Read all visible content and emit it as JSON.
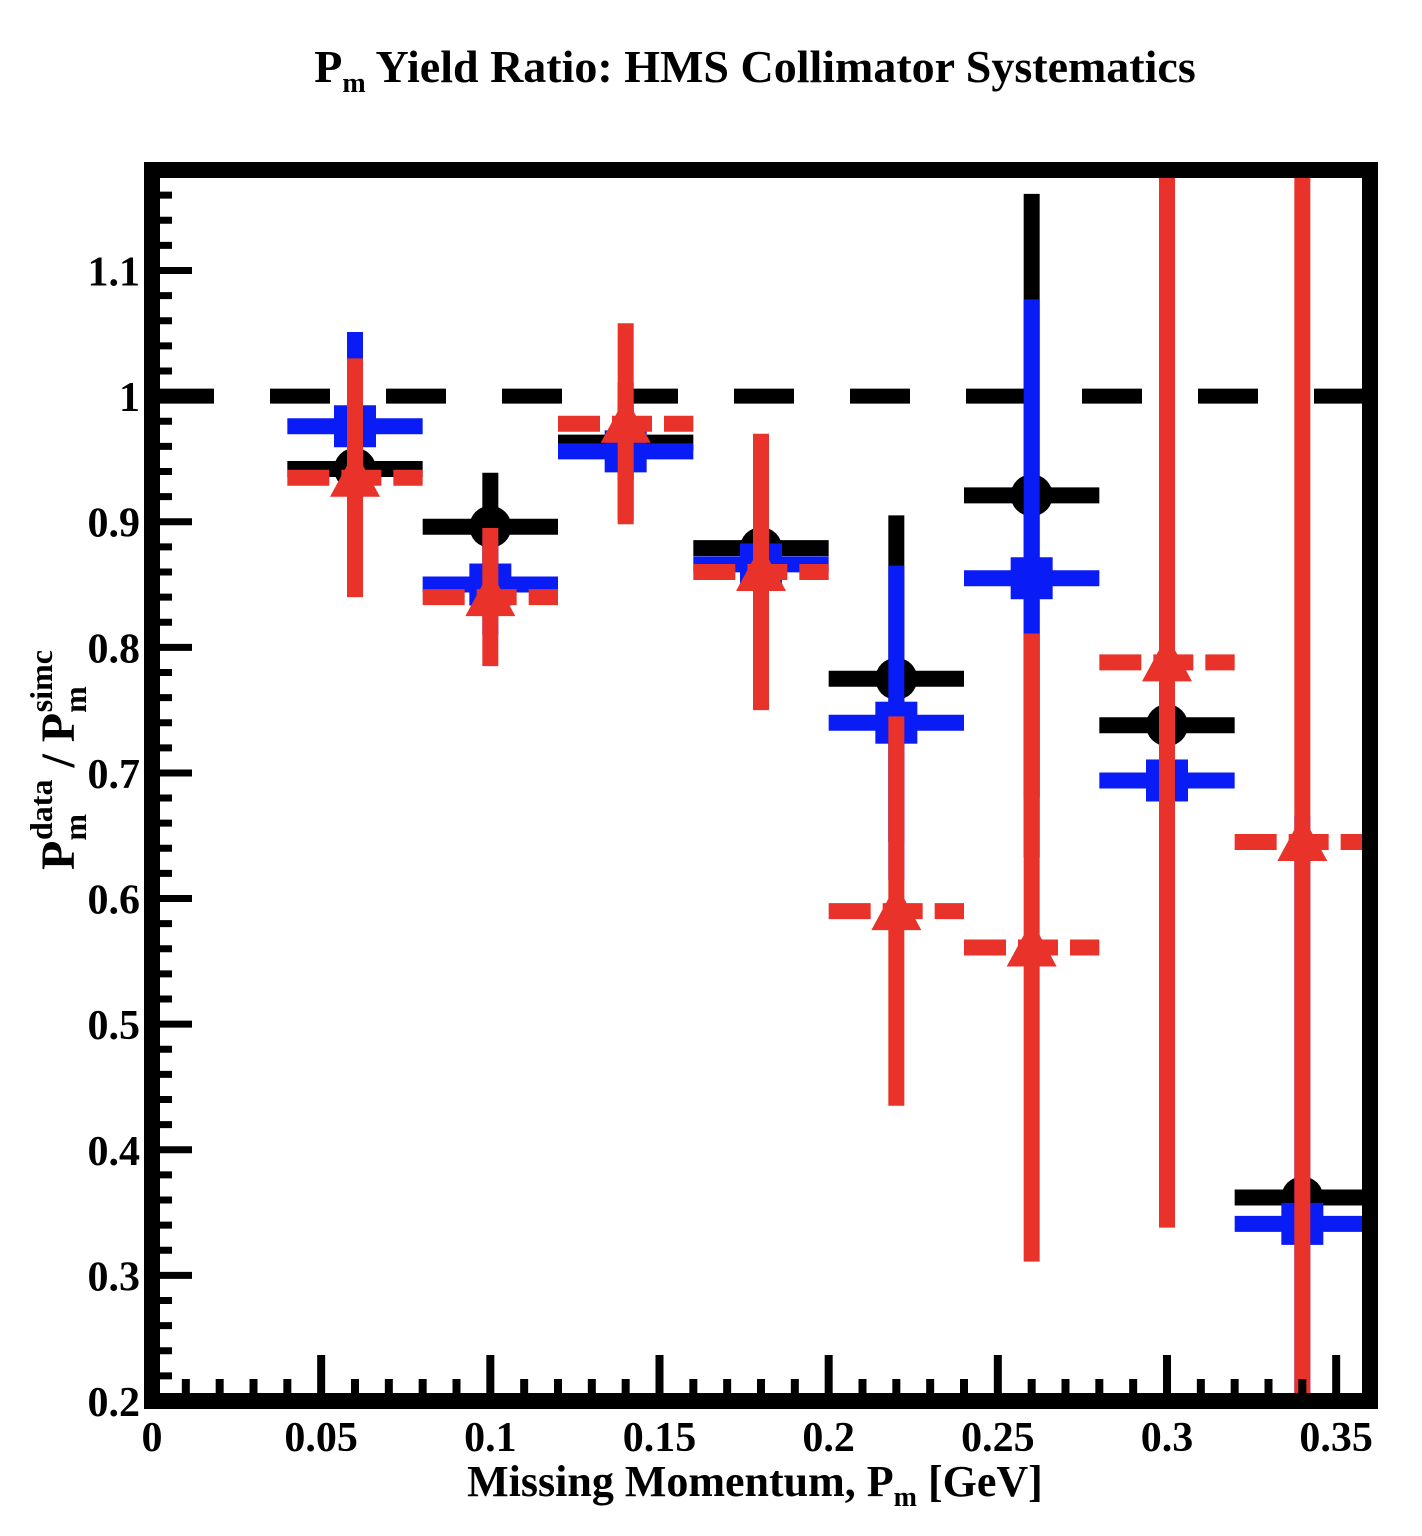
{
  "chart_data": {
    "type": "scatter",
    "title": {
      "main": "P",
      "sub": "m",
      "rest": " Yield Ratio: HMS Collimator Systematics"
    },
    "xlabel": {
      "main": "Missing Momentum, P",
      "sub": "m",
      "rest": " [GeV]"
    },
    "ylabel": {
      "num_main": "P",
      "num_sub": "m",
      "num_sup": "data",
      "sep": " / ",
      "den_main": "P",
      "den_sub": "m",
      "den_sup": "simc"
    },
    "xlim": [
      0,
      0.36
    ],
    "ylim": [
      0.2,
      1.18
    ],
    "x_ticks": [
      "0",
      "0.05",
      "0.1",
      "0.15",
      "0.2",
      "0.25",
      "0.3",
      "0.35"
    ],
    "y_ticks": [
      "0.2",
      "0.3",
      "0.4",
      "0.5",
      "0.6",
      "0.7",
      "0.8",
      "0.9",
      "1",
      "1.1"
    ],
    "reference_line": {
      "y": 1.0,
      "style": "dashed",
      "color": "#000000"
    },
    "x_half_width": 0.02,
    "series": [
      {
        "marker": "circle",
        "color": "#000000",
        "points": [
          {
            "x": 0.06,
            "y": 0.942,
            "yerr": 0.03
          },
          {
            "x": 0.1,
            "y": 0.896,
            "yerr": 0.043
          },
          {
            "x": 0.14,
            "y": 0.963,
            "yerr": 0.03
          },
          {
            "x": 0.18,
            "y": 0.879,
            "yerr": 0.015
          },
          {
            "x": 0.22,
            "y": 0.775,
            "yerr": 0.13
          },
          {
            "x": 0.26,
            "y": 0.921,
            "yerr": 0.24
          },
          {
            "x": 0.3,
            "y": 0.738,
            "yerr": 0.02
          },
          {
            "x": 0.34,
            "y": 0.362,
            "yerr": 0.01
          }
        ]
      },
      {
        "marker": "square",
        "color": "#0a1cf5",
        "points": [
          {
            "x": 0.06,
            "y": 0.976,
            "yerr": 0.075
          },
          {
            "x": 0.1,
            "y": 0.85,
            "yerr": 0.04
          },
          {
            "x": 0.14,
            "y": 0.956,
            "yerr": 0.055
          },
          {
            "x": 0.18,
            "y": 0.866,
            "yerr": 0.02
          },
          {
            "x": 0.22,
            "y": 0.74,
            "yerr": 0.125
          },
          {
            "x": 0.26,
            "y": 0.855,
            "yerr": 0.222
          },
          {
            "x": 0.3,
            "y": 0.694,
            "yerr": 0.11
          },
          {
            "x": 0.34,
            "y": 0.341,
            "yerr": 0.325
          }
        ]
      },
      {
        "marker": "triangle",
        "color": "#e8322a",
        "points": [
          {
            "x": 0.06,
            "y": 0.935,
            "yerr": 0.095
          },
          {
            "x": 0.1,
            "y": 0.84,
            "yerr": 0.055
          },
          {
            "x": 0.14,
            "y": 0.978,
            "yerr": 0.08
          },
          {
            "x": 0.18,
            "y": 0.86,
            "yerr": 0.11
          },
          {
            "x": 0.22,
            "y": 0.59,
            "yerr": 0.155
          },
          {
            "x": 0.26,
            "y": 0.561,
            "yerr": 0.25
          },
          {
            "x": 0.3,
            "y": 0.788,
            "yerr": 0.45
          },
          {
            "x": 0.34,
            "y": 0.645,
            "yerr": 0.53
          }
        ]
      }
    ]
  }
}
